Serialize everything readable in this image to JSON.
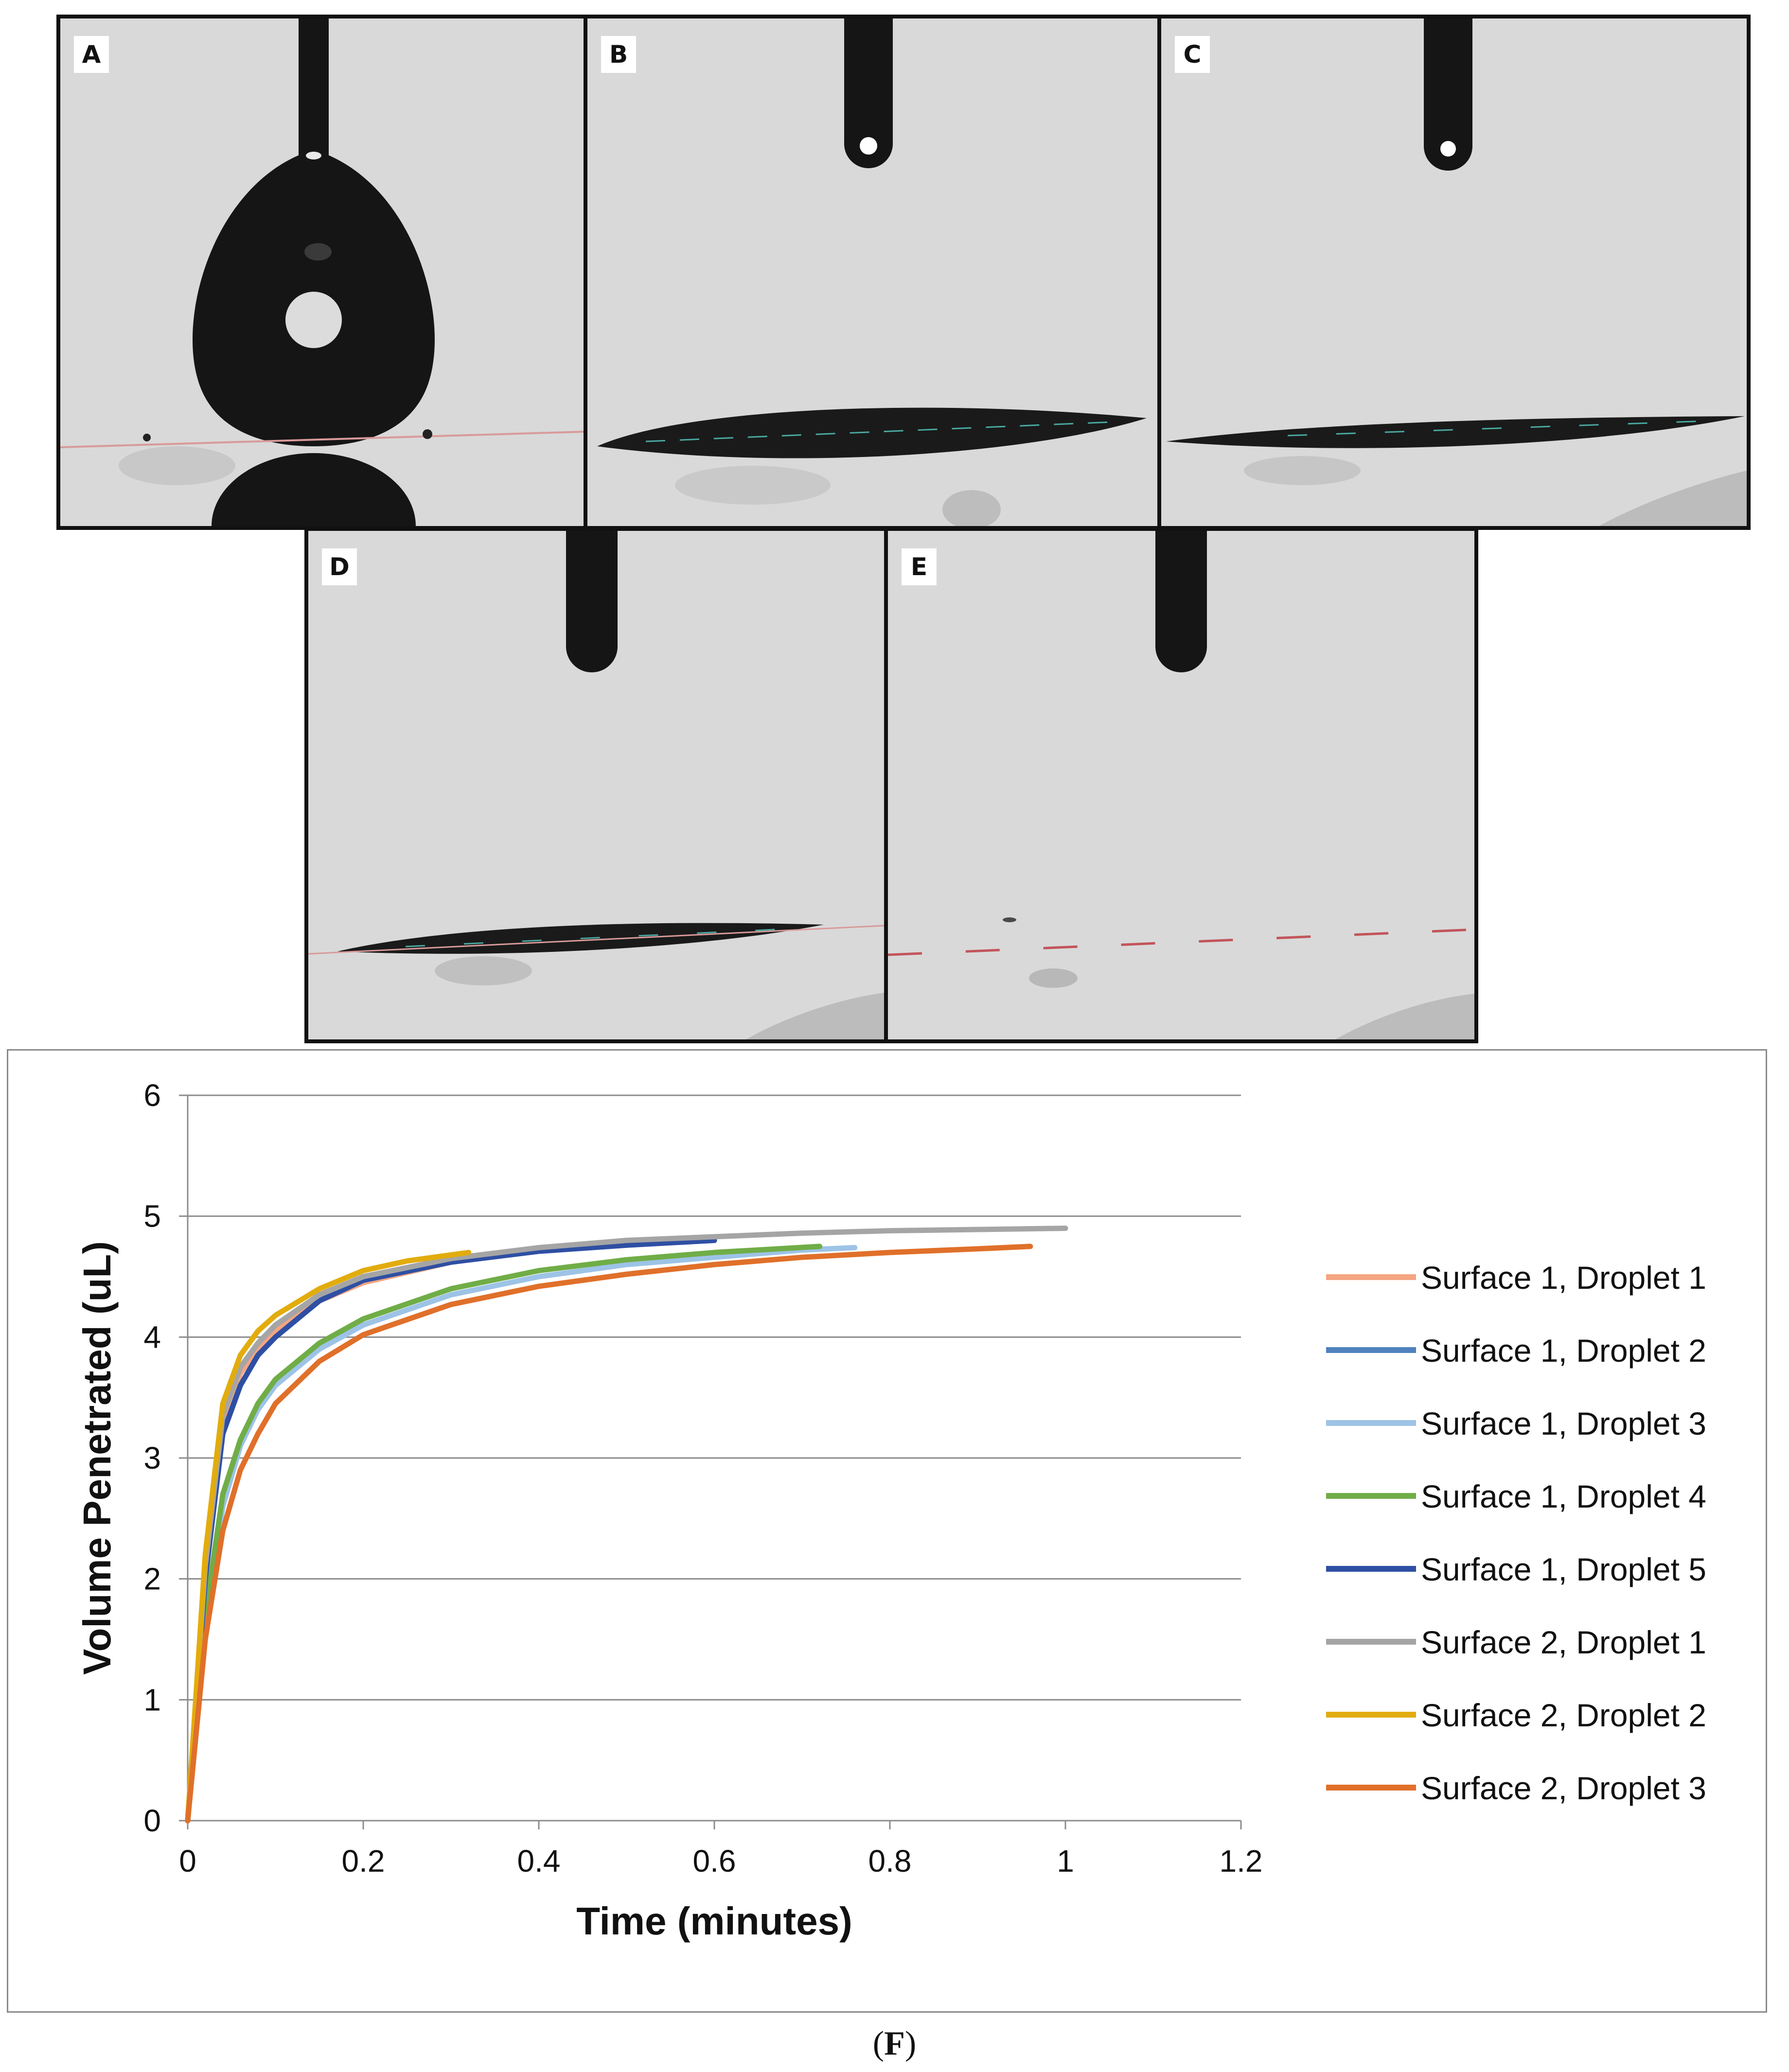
{
  "panels": [
    {
      "letter": "A",
      "state": "droplet-hanging"
    },
    {
      "letter": "B",
      "state": "droplet-spreading"
    },
    {
      "letter": "C",
      "state": "droplet-thin-film"
    },
    {
      "letter": "D",
      "state": "droplet-thin-film"
    },
    {
      "letter": "E",
      "state": "droplet-absorbed"
    }
  ],
  "caption": {
    "open": "(",
    "letter": "F",
    "close": ")"
  },
  "chart_data": {
    "type": "line",
    "title": "",
    "xlabel": "Time (minutes)",
    "ylabel": "Volume Penetrated (uL)",
    "xlim": [
      0,
      1.2
    ],
    "ylim": [
      0,
      6
    ],
    "xticks": [
      "0",
      "0.2",
      "0.4",
      "0.6",
      "0.8",
      "1",
      "1.2"
    ],
    "yticks": [
      "0",
      "1",
      "2",
      "3",
      "4",
      "5",
      "6"
    ],
    "grid": "horizontal",
    "legend_position": "right",
    "series": [
      {
        "name": "Surface 1, Droplet 1",
        "color": "#F4A582",
        "x": [
          0,
          0.02,
          0.04,
          0.06,
          0.08,
          0.1,
          0.15,
          0.2,
          0.3,
          0.4,
          0.5,
          0.6
        ],
        "y": [
          0,
          2.0,
          3.3,
          3.7,
          3.9,
          4.05,
          4.3,
          4.45,
          4.62,
          4.72,
          4.77,
          4.8
        ]
      },
      {
        "name": "Surface 1, Droplet 2",
        "color": "#4F81BD",
        "x": [
          0,
          0.02,
          0.04,
          0.06,
          0.08,
          0.1,
          0.15,
          0.2,
          0.3,
          0.4,
          0.5,
          0.6
        ],
        "y": [
          0,
          2.1,
          3.4,
          3.75,
          3.95,
          4.1,
          4.35,
          4.5,
          4.65,
          4.73,
          4.78,
          4.8
        ]
      },
      {
        "name": "Surface 1, Droplet 3",
        "color": "#9DC3E6",
        "x": [
          0,
          0.02,
          0.04,
          0.06,
          0.08,
          0.1,
          0.15,
          0.2,
          0.3,
          0.4,
          0.5,
          0.6,
          0.7,
          0.76
        ],
        "y": [
          0,
          1.6,
          2.6,
          3.1,
          3.4,
          3.6,
          3.9,
          4.1,
          4.35,
          4.5,
          4.6,
          4.66,
          4.72,
          4.74
        ]
      },
      {
        "name": "Surface 1, Droplet 4",
        "color": "#70AD47",
        "x": [
          0,
          0.02,
          0.04,
          0.06,
          0.08,
          0.1,
          0.15,
          0.2,
          0.3,
          0.4,
          0.5,
          0.6,
          0.72
        ],
        "y": [
          0,
          1.7,
          2.7,
          3.15,
          3.45,
          3.65,
          3.95,
          4.15,
          4.4,
          4.55,
          4.64,
          4.7,
          4.75
        ]
      },
      {
        "name": "Surface 1, Droplet 5",
        "color": "#2E4FA3",
        "x": [
          0,
          0.02,
          0.04,
          0.06,
          0.08,
          0.1,
          0.15,
          0.2,
          0.3,
          0.4,
          0.5,
          0.6
        ],
        "y": [
          0,
          2.0,
          3.2,
          3.6,
          3.85,
          4.0,
          4.3,
          4.47,
          4.62,
          4.71,
          4.76,
          4.8
        ]
      },
      {
        "name": "Surface 2, Droplet 1",
        "color": "#A5A5A5",
        "x": [
          0,
          0.02,
          0.04,
          0.06,
          0.08,
          0.1,
          0.15,
          0.2,
          0.3,
          0.4,
          0.5,
          0.6,
          0.7,
          0.8,
          0.9,
          1.0
        ],
        "y": [
          0,
          2.1,
          3.35,
          3.75,
          3.95,
          4.1,
          4.35,
          4.5,
          4.65,
          4.74,
          4.8,
          4.83,
          4.86,
          4.88,
          4.89,
          4.9
        ]
      },
      {
        "name": "Surface 2, Droplet 2",
        "color": "#E2AC0E",
        "x": [
          0,
          0.02,
          0.04,
          0.06,
          0.08,
          0.1,
          0.15,
          0.2,
          0.25,
          0.32
        ],
        "y": [
          0,
          2.2,
          3.45,
          3.85,
          4.05,
          4.18,
          4.4,
          4.55,
          4.63,
          4.7
        ]
      },
      {
        "name": "Surface 2, Droplet 3",
        "color": "#E0702A",
        "x": [
          0,
          0.02,
          0.04,
          0.06,
          0.08,
          0.1,
          0.15,
          0.2,
          0.3,
          0.4,
          0.5,
          0.6,
          0.7,
          0.8,
          0.9,
          0.96
        ],
        "y": [
          0,
          1.5,
          2.4,
          2.9,
          3.2,
          3.45,
          3.8,
          4.02,
          4.27,
          4.42,
          4.52,
          4.6,
          4.66,
          4.7,
          4.73,
          4.75
        ]
      }
    ]
  }
}
